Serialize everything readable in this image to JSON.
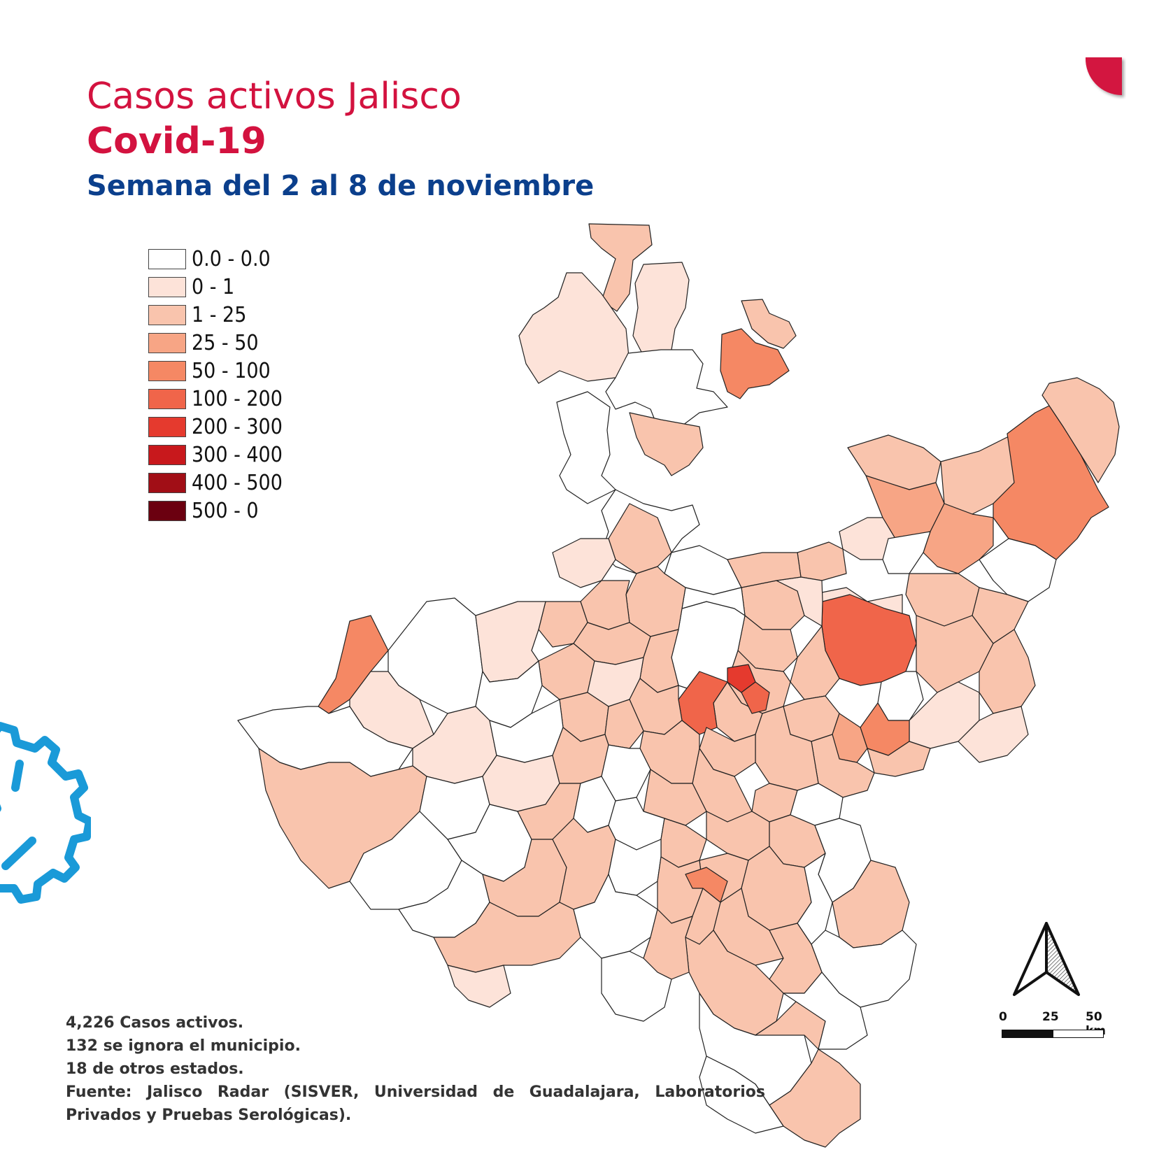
{
  "header": {
    "title": "Casos activos Jalisco",
    "subtitle": "Covid-19",
    "week": "Semana del 2 al 8 de noviembre"
  },
  "legend": {
    "items": [
      {
        "label": "0.0 - 0.0",
        "color": "#ffffff"
      },
      {
        "label": "0 - 1",
        "color": "#fde3d9"
      },
      {
        "label": "1 - 25",
        "color": "#f9c4ad"
      },
      {
        "label": "25 - 50",
        "color": "#f7a585"
      },
      {
        "label": "50 - 100",
        "color": "#f58864"
      },
      {
        "label": "100 - 200",
        "color": "#f0654a"
      },
      {
        "label": "200 - 300",
        "color": "#e53a2e"
      },
      {
        "label": "300 - 400",
        "color": "#c8181c"
      },
      {
        "label": "400 - 500",
        "color": "#a10e16"
      },
      {
        "label": "500 - 0",
        "color": "#6b0010"
      }
    ]
  },
  "notes": {
    "line1": "4,226 Casos activos.",
    "line2": "132 se ignora el municipio.",
    "line3": "18 de otros estados.",
    "line4": "Fuente: Jalisco Radar (SISVER, Universidad de Guadalajara, Laboratorios",
    "line5": "Privados y Pruebas Serológicas)."
  },
  "scale_bar": {
    "label_0": "0",
    "label_25": "25",
    "label_50": "50 km"
  },
  "colors": {
    "brand_red": "#d3123f",
    "brand_blue": "#0b3f8c",
    "gear_blue": "#1a9ad8"
  },
  "icons": {
    "north_arrow": "north-arrow-icon",
    "corner_shape": "corner-quarter-circle",
    "gear": "gear-icon"
  }
}
